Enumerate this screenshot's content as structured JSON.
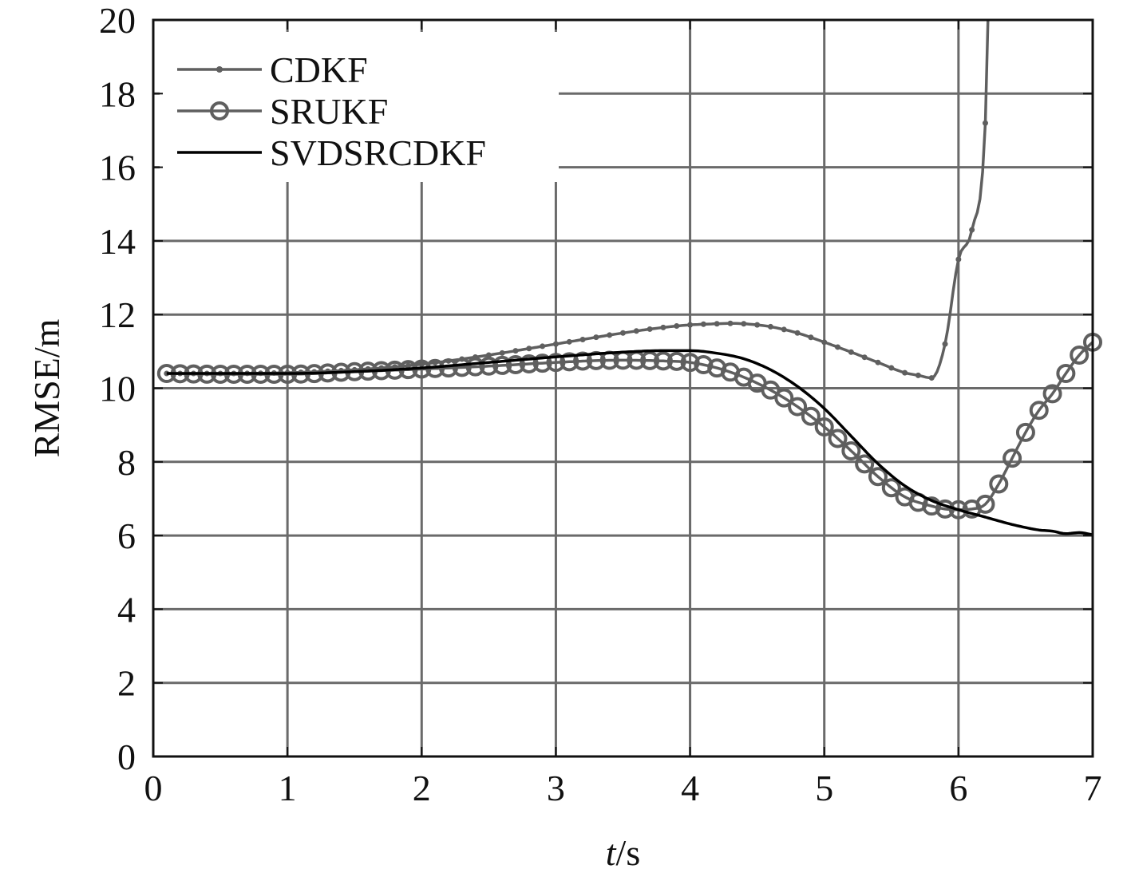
{
  "chart_data": {
    "type": "line",
    "title": "",
    "xlabel": {
      "italic": "t",
      "rest": "/s"
    },
    "ylabel": "RMSE/m",
    "xlim": [
      0,
      7
    ],
    "ylim": [
      0,
      20
    ],
    "xticks": [
      "0",
      "1",
      "2",
      "3",
      "4",
      "5",
      "6",
      "7"
    ],
    "yticks": [
      "0",
      "2",
      "4",
      "6",
      "8",
      "10",
      "12",
      "14",
      "16",
      "18",
      "20"
    ],
    "grid": true,
    "legend_position": "top-left",
    "series": [
      {
        "name": "CDKF",
        "color": "#5f5f5f",
        "marker": "dot",
        "x": [
          0.1,
          0.5,
          1.0,
          1.5,
          2.0,
          2.5,
          3.0,
          3.5,
          3.8,
          4.0,
          4.2,
          4.3,
          4.4,
          4.5,
          4.6,
          4.8,
          5.0,
          5.2,
          5.4,
          5.6,
          5.7,
          5.8,
          5.9,
          6.0,
          6.1,
          6.2,
          6.22
        ],
        "y": [
          10.4,
          10.4,
          10.42,
          10.5,
          10.65,
          10.9,
          11.2,
          11.5,
          11.65,
          11.72,
          11.75,
          11.76,
          11.75,
          11.72,
          11.67,
          11.5,
          11.25,
          10.98,
          10.7,
          10.42,
          10.35,
          10.28,
          11.2,
          13.5,
          14.3,
          17.2,
          20.0
        ]
      },
      {
        "name": "SRUKF",
        "color": "#5f5f5f",
        "marker": "circle",
        "x": [
          0.1,
          0.5,
          1.0,
          1.5,
          2.0,
          2.5,
          3.0,
          3.3,
          3.5,
          3.8,
          4.0,
          4.2,
          4.4,
          4.6,
          4.8,
          5.0,
          5.2,
          5.4,
          5.6,
          5.8,
          5.9,
          6.0,
          6.1,
          6.2,
          6.3,
          6.4,
          6.5,
          6.6,
          6.7,
          6.8,
          6.9,
          7.0
        ],
        "y": [
          10.4,
          10.38,
          10.38,
          10.45,
          10.52,
          10.6,
          10.7,
          10.75,
          10.76,
          10.74,
          10.7,
          10.55,
          10.3,
          9.95,
          9.5,
          8.95,
          8.3,
          7.6,
          7.05,
          6.8,
          6.72,
          6.7,
          6.72,
          6.85,
          7.4,
          8.1,
          8.8,
          9.4,
          9.85,
          10.4,
          10.9,
          11.25
        ]
      },
      {
        "name": "SVDSRCDKF",
        "color": "#000000",
        "marker": "none",
        "x": [
          0.1,
          0.5,
          1.0,
          1.5,
          2.0,
          2.5,
          3.0,
          3.5,
          3.8,
          4.0,
          4.2,
          4.4,
          4.6,
          4.8,
          5.0,
          5.2,
          5.4,
          5.6,
          5.8,
          6.0,
          6.2,
          6.4,
          6.6,
          6.7,
          6.8,
          6.9,
          7.0
        ],
        "y": [
          10.4,
          10.4,
          10.4,
          10.45,
          10.55,
          10.7,
          10.85,
          10.98,
          11.02,
          11.02,
          10.95,
          10.8,
          10.5,
          10.05,
          9.45,
          8.7,
          7.95,
          7.35,
          6.95,
          6.7,
          6.5,
          6.3,
          6.15,
          6.12,
          6.05,
          6.08,
          6.02
        ]
      }
    ]
  }
}
